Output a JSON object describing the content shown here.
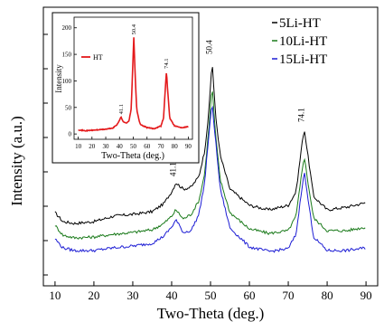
{
  "chart_data": [
    {
      "type": "line",
      "xlabel": "Two-Theta (deg.)",
      "ylabel": "Intensity (a.u.)",
      "xlim": [
        7,
        93
      ],
      "xticks": [
        10,
        20,
        30,
        40,
        50,
        60,
        70,
        80,
        90
      ],
      "y_tick_labels_shown": false,
      "grid": false,
      "legend_position": "top-right",
      "peak_labels": [
        "41.1",
        "50.4",
        "74.1"
      ],
      "series": [
        {
          "name": "5Li-HT",
          "color": "#000000",
          "x": [
            10,
            12,
            15,
            20,
            25,
            30,
            35,
            38,
            40,
            41.1,
            43,
            45,
            47,
            48.5,
            49.5,
            50.4,
            51.3,
            52.5,
            55,
            60,
            65,
            70,
            72,
            73.3,
            74.1,
            74.9,
            76.5,
            80,
            85,
            90
          ],
          "y": [
            82,
            72,
            70,
            72,
            78,
            80,
            83,
            92,
            105,
            115,
            108,
            110,
            122,
            150,
            190,
            250,
            190,
            145,
            108,
            90,
            85,
            90,
            105,
            150,
            175,
            150,
            100,
            85,
            88,
            93
          ]
        },
        {
          "name": "10Li-HT",
          "color": "#1a7a1a",
          "x": [
            10,
            12,
            15,
            20,
            25,
            30,
            35,
            38,
            40,
            41.1,
            43,
            45,
            47,
            48.5,
            49.5,
            50.4,
            51.3,
            52.5,
            55,
            60,
            65,
            70,
            72,
            73.3,
            74.1,
            74.9,
            76.5,
            80,
            85,
            90
          ],
          "y": [
            68,
            57,
            54,
            55,
            58,
            60,
            63,
            70,
            78,
            85,
            75,
            80,
            95,
            125,
            172,
            222,
            168,
            118,
            82,
            64,
            59,
            62,
            78,
            120,
            145,
            120,
            76,
            62,
            62,
            66
          ]
        },
        {
          "name": "15Li-HT",
          "color": "#1c1cd4",
          "x": [
            10,
            12,
            15,
            20,
            25,
            30,
            35,
            38,
            40,
            41.1,
            43,
            45,
            47,
            48.5,
            49.5,
            50.4,
            51.3,
            52.5,
            55,
            60,
            65,
            70,
            72,
            73.3,
            74.1,
            74.9,
            76.5,
            80,
            85,
            90
          ],
          "y": [
            53,
            43,
            40,
            40,
            43,
            45,
            48,
            56,
            66,
            74,
            60,
            62,
            80,
            115,
            165,
            203,
            162,
            108,
            65,
            44,
            39,
            42,
            58,
            102,
            128,
            102,
            55,
            40,
            40,
            43
          ]
        }
      ]
    },
    {
      "type": "line",
      "xlabel": "Two-Theta (deg.)",
      "ylabel": "Intensity",
      "xlim": [
        7,
        93
      ],
      "ylim": [
        -10,
        220
      ],
      "xticks": [
        10,
        20,
        30,
        40,
        50,
        60,
        70,
        80,
        90
      ],
      "yticks": [
        0,
        50,
        100,
        150,
        200
      ],
      "grid": false,
      "legend_position": "left",
      "peak_labels": [
        "41.1",
        "50.4",
        "74.1"
      ],
      "series": [
        {
          "name": "HT",
          "color": "#e41a1c",
          "x": [
            10,
            15,
            20,
            25,
            30,
            35,
            38,
            40,
            41.1,
            43,
            45,
            47,
            48.5,
            49.5,
            50.4,
            51.3,
            52.5,
            55,
            60,
            65,
            70,
            72,
            73.3,
            74.1,
            74.9,
            76.5,
            80,
            85,
            90
          ],
          "y": [
            8,
            6,
            7,
            8,
            9,
            11,
            17,
            26,
            32,
            22,
            21,
            25,
            48,
            120,
            182,
            118,
            45,
            18,
            12,
            10,
            15,
            30,
            85,
            118,
            85,
            30,
            15,
            12,
            14
          ]
        }
      ]
    }
  ]
}
